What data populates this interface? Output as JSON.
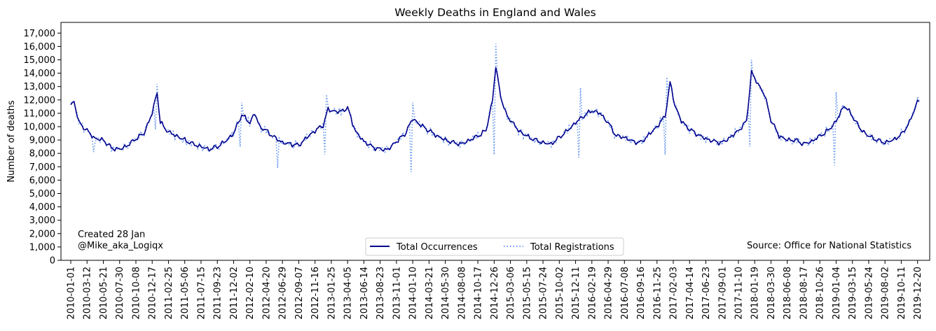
{
  "chart_data": {
    "type": "line",
    "title": "Weekly Deaths in England and Wales",
    "xlabel": "",
    "ylabel": "Number of deaths",
    "ylim": [
      0,
      17800
    ],
    "yticks": [
      "0",
      "1,000",
      "2,000",
      "3,000",
      "4,000",
      "5,000",
      "6,000",
      "7,000",
      "8,000",
      "9,000",
      "10,000",
      "11,000",
      "12,000",
      "13,000",
      "14,000",
      "15,000",
      "16,000",
      "17,000"
    ],
    "x_tick_labels": [
      "2010-01-01",
      "2010-03-12",
      "2010-05-21",
      "2010-07-30",
      "2010-10-08",
      "2010-12-17",
      "2011-02-25",
      "2011-05-06",
      "2011-07-15",
      "2011-09-23",
      "2011-12-02",
      "2012-02-10",
      "2012-04-20",
      "2012-06-29",
      "2012-09-07",
      "2012-11-16",
      "2013-01-25",
      "2013-04-05",
      "2013-06-14",
      "2013-08-23",
      "2013-11-01",
      "2014-01-10",
      "2014-03-21",
      "2014-05-30",
      "2014-08-08",
      "2014-10-17",
      "2014-12-26",
      "2015-03-06",
      "2015-05-15",
      "2015-07-24",
      "2015-10-02",
      "2015-12-11",
      "2016-02-19",
      "2016-04-29",
      "2016-07-08",
      "2016-09-16",
      "2016-11-25",
      "2017-02-03",
      "2017-04-14",
      "2017-06-23",
      "2017-09-01",
      "2017-11-10",
      "2018-01-19",
      "2018-03-30",
      "2018-06-08",
      "2018-08-17",
      "2018-10-26",
      "2019-01-04",
      "2019-03-15",
      "2019-05-24",
      "2019-08-02",
      "2019-10-11",
      "2019-12-20"
    ],
    "week_interval": 1,
    "anchors": [
      [
        "2010-01-01",
        11600
      ],
      [
        "2010-01-15",
        11900
      ],
      [
        "2010-02-05",
        10300
      ],
      [
        "2010-03-12",
        9700
      ],
      [
        "2010-04-16",
        9100
      ],
      [
        "2010-05-21",
        9000
      ],
      [
        "2010-06-25",
        8400
      ],
      [
        "2010-07-30",
        8300
      ],
      [
        "2010-09-03",
        8600
      ],
      [
        "2010-10-08",
        9100
      ],
      [
        "2010-11-12",
        9500
      ],
      [
        "2010-12-17",
        11000
      ],
      [
        "2011-01-07",
        12600
      ],
      [
        "2011-01-21",
        10300
      ],
      [
        "2011-02-25",
        9600
      ],
      [
        "2011-04-01",
        9300
      ],
      [
        "2011-05-06",
        9000
      ],
      [
        "2011-06-10",
        8700
      ],
      [
        "2011-07-15",
        8500
      ],
      [
        "2011-08-19",
        8300
      ],
      [
        "2011-09-23",
        8500
      ],
      [
        "2011-10-28",
        8900
      ],
      [
        "2011-12-02",
        9500
      ],
      [
        "2012-01-06",
        10900
      ],
      [
        "2012-02-10",
        10300
      ],
      [
        "2012-03-02",
        11000
      ],
      [
        "2012-03-23",
        10000
      ],
      [
        "2012-04-20",
        9700
      ],
      [
        "2012-05-25",
        9200
      ],
      [
        "2012-06-29",
        8800
      ],
      [
        "2012-08-03",
        8700
      ],
      [
        "2012-09-07",
        8600
      ],
      [
        "2012-10-12",
        9200
      ],
      [
        "2012-11-16",
        9700
      ],
      [
        "2012-12-21",
        10100
      ],
      [
        "2013-01-11",
        11300
      ],
      [
        "2013-01-25",
        11200
      ],
      [
        "2013-03-01",
        11100
      ],
      [
        "2013-04-05",
        11400
      ],
      [
        "2013-05-10",
        9600
      ],
      [
        "2013-06-14",
        8900
      ],
      [
        "2013-07-19",
        8500
      ],
      [
        "2013-08-23",
        8300
      ],
      [
        "2013-09-27",
        8300
      ],
      [
        "2013-11-01",
        8900
      ],
      [
        "2013-12-06",
        9400
      ],
      [
        "2014-01-10",
        10600
      ],
      [
        "2014-02-14",
        10100
      ],
      [
        "2014-03-21",
        9700
      ],
      [
        "2014-04-25",
        9300
      ],
      [
        "2014-05-30",
        9000
      ],
      [
        "2014-07-04",
        8800
      ],
      [
        "2014-08-08",
        8700
      ],
      [
        "2014-09-12",
        9000
      ],
      [
        "2014-10-17",
        9300
      ],
      [
        "2014-11-21",
        9700
      ],
      [
        "2014-12-19",
        12000
      ],
      [
        "2015-01-02",
        14500
      ],
      [
        "2015-01-23",
        12300
      ],
      [
        "2015-02-13",
        11000
      ],
      [
        "2015-03-06",
        10500
      ],
      [
        "2015-04-10",
        9700
      ],
      [
        "2015-05-15",
        9300
      ],
      [
        "2015-06-19",
        9000
      ],
      [
        "2015-07-24",
        8800
      ],
      [
        "2015-08-28",
        8700
      ],
      [
        "2015-10-02",
        9200
      ],
      [
        "2015-11-06",
        9700
      ],
      [
        "2015-12-11",
        10300
      ],
      [
        "2016-01-15",
        10800
      ],
      [
        "2016-02-19",
        11200
      ],
      [
        "2016-03-25",
        11000
      ],
      [
        "2016-04-29",
        10300
      ],
      [
        "2016-06-03",
        9300
      ],
      [
        "2016-07-08",
        9200
      ],
      [
        "2016-08-12",
        8900
      ],
      [
        "2016-09-16",
        8800
      ],
      [
        "2016-10-21",
        9400
      ],
      [
        "2016-11-25",
        10000
      ],
      [
        "2016-12-30",
        10800
      ],
      [
        "2017-01-20",
        13300
      ],
      [
        "2017-02-10",
        11600
      ],
      [
        "2017-03-10",
        10400
      ],
      [
        "2017-04-14",
        9800
      ],
      [
        "2017-05-19",
        9400
      ],
      [
        "2017-06-23",
        9100
      ],
      [
        "2017-07-28",
        8900
      ],
      [
        "2017-09-01",
        8800
      ],
      [
        "2017-10-06",
        9200
      ],
      [
        "2017-11-10",
        9700
      ],
      [
        "2017-12-15",
        10400
      ],
      [
        "2018-01-05",
        14100
      ],
      [
        "2018-01-19",
        13600
      ],
      [
        "2018-03-02",
        12400
      ],
      [
        "2018-03-30",
        10500
      ],
      [
        "2018-05-04",
        9300
      ],
      [
        "2018-06-08",
        9000
      ],
      [
        "2018-07-13",
        9000
      ],
      [
        "2018-08-17",
        8700
      ],
      [
        "2018-09-21",
        8900
      ],
      [
        "2018-10-26",
        9300
      ],
      [
        "2018-11-30",
        9700
      ],
      [
        "2019-01-04",
        10400
      ],
      [
        "2019-02-08",
        11600
      ],
      [
        "2019-03-15",
        10800
      ],
      [
        "2019-04-19",
        9800
      ],
      [
        "2019-05-24",
        9300
      ],
      [
        "2019-06-28",
        9000
      ],
      [
        "2019-08-02",
        8800
      ],
      [
        "2019-09-06",
        9000
      ],
      [
        "2019-10-11",
        9400
      ],
      [
        "2019-11-15",
        10300
      ],
      [
        "2019-12-20",
        11900
      ],
      [
        "2019-12-27",
        12000
      ]
    ],
    "registration_spikes": [
      [
        "2010-04-09",
        8100
      ],
      [
        "2010-12-31",
        9800
      ],
      [
        "2011-01-07",
        13200
      ],
      [
        "2011-04-29",
        8800
      ],
      [
        "2011-12-30",
        8500
      ],
      [
        "2012-01-06",
        11800
      ],
      [
        "2012-06-08",
        6900
      ],
      [
        "2012-12-28",
        7900
      ],
      [
        "2013-01-04",
        12400
      ],
      [
        "2014-01-03",
        6600
      ],
      [
        "2014-01-10",
        11800
      ],
      [
        "2014-12-26",
        7900
      ],
      [
        "2015-01-02",
        16200
      ],
      [
        "2015-12-25",
        7700
      ],
      [
        "2016-01-01",
        12900
      ],
      [
        "2016-12-30",
        7900
      ],
      [
        "2017-01-06",
        13700
      ],
      [
        "2017-12-29",
        8500
      ],
      [
        "2018-01-05",
        15000
      ],
      [
        "2018-12-28",
        7100
      ],
      [
        "2019-01-04",
        12600
      ],
      [
        "2019-12-27",
        7600
      ],
      [
        "2019-12-31",
        12000
      ]
    ],
    "series": [
      {
        "name": "Total Occurrences",
        "color": "#00008b",
        "style": "solid"
      },
      {
        "name": "Total Registrations",
        "color": "#6495ed",
        "style": "dotted"
      }
    ],
    "legend_position": "lower-center",
    "grid": false,
    "annotations": {
      "created": "Created 28 Jan",
      "author": "@Mike_aka_Logiqx",
      "source": "Source: Office for National Statistics"
    }
  }
}
